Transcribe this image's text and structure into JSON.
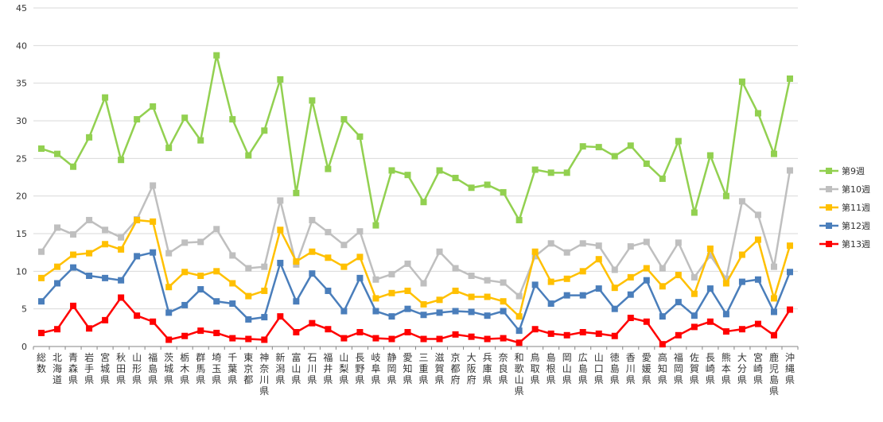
{
  "chart_data": {
    "type": "line",
    "title": "",
    "xlabel": "",
    "ylabel": "",
    "ylim": [
      0,
      45
    ],
    "yticks": [
      "0",
      "5",
      "10",
      "15",
      "20",
      "25",
      "30",
      "35",
      "40",
      "45"
    ],
    "grid": "horizontal",
    "legend_position": "right",
    "categories": [
      "総数",
      "北海道",
      "青森県",
      "岩手県",
      "宮城県",
      "秋田県",
      "山形県",
      "福島県",
      "茨城県",
      "栃木県",
      "群馬県",
      "埼玉県",
      "千葉県",
      "東京都",
      "神奈川県",
      "新潟県",
      "富山県",
      "石川県",
      "福井県",
      "山梨県",
      "長野県",
      "岐阜県",
      "静岡県",
      "愛知県",
      "三重県",
      "滋賀県",
      "京都府",
      "大阪府",
      "兵庫県",
      "奈良県",
      "和歌山県",
      "鳥取県",
      "島根県",
      "岡山県",
      "広島県",
      "山口県",
      "徳島県",
      "香川県",
      "愛媛県",
      "高知県",
      "福岡県",
      "佐賀県",
      "長崎県",
      "熊本県",
      "大分県",
      "宮崎県",
      "鹿児島県",
      "沖縄県"
    ],
    "series": [
      {
        "name": "第9週",
        "color": "#92d050",
        "values": [
          26.3,
          25.6,
          23.9,
          27.8,
          33.1,
          24.8,
          30.2,
          31.9,
          26.4,
          30.4,
          27.4,
          38.7,
          30.2,
          25.4,
          28.7,
          35.5,
          20.4,
          32.7,
          23.6,
          30.2,
          27.9,
          16.1,
          23.4,
          22.8,
          19.2,
          23.4,
          22.4,
          21.1,
          21.5,
          20.5,
          16.8,
          23.5,
          23.1,
          23.1,
          26.6,
          26.5,
          25.3,
          26.7,
          24.3,
          22.3,
          27.3,
          17.8,
          25.4,
          20.0,
          35.2,
          31.0,
          25.6,
          35.6
        ]
      },
      {
        "name": "第10週",
        "color": "#bfbfbf",
        "values": [
          12.6,
          15.8,
          14.9,
          16.8,
          15.5,
          14.5,
          16.9,
          21.4,
          12.4,
          13.8,
          13.9,
          15.6,
          12.1,
          10.4,
          10.6,
          19.4,
          10.9,
          16.8,
          15.2,
          13.5,
          15.3,
          8.9,
          9.6,
          11.0,
          8.4,
          12.6,
          10.4,
          9.4,
          8.8,
          8.5,
          6.7,
          12.0,
          13.7,
          12.5,
          13.7,
          13.4,
          10.2,
          13.3,
          13.9,
          10.4,
          13.8,
          9.2,
          12.1,
          9.0,
          19.3,
          17.5,
          10.6,
          23.4
        ]
      },
      {
        "name": "第11週",
        "color": "#ffc000",
        "values": [
          9.1,
          10.6,
          12.2,
          12.4,
          13.6,
          12.9,
          16.8,
          16.6,
          7.9,
          9.9,
          9.4,
          10.0,
          8.4,
          6.7,
          7.4,
          15.5,
          11.3,
          12.6,
          11.8,
          10.6,
          11.9,
          6.4,
          7.1,
          7.4,
          5.6,
          6.2,
          7.4,
          6.6,
          6.6,
          6.0,
          4.0,
          12.6,
          8.6,
          9.0,
          10.0,
          11.6,
          7.8,
          9.2,
          10.4,
          8.0,
          9.5,
          7.0,
          13.0,
          8.4,
          12.2,
          14.2,
          6.4,
          13.4
        ]
      },
      {
        "name": "第12週",
        "color": "#4a7ebb",
        "values": [
          6.0,
          8.4,
          10.5,
          9.4,
          9.1,
          8.8,
          12.0,
          12.5,
          4.5,
          5.5,
          7.6,
          6.0,
          5.7,
          3.6,
          3.9,
          11.1,
          6.0,
          9.7,
          7.4,
          4.7,
          9.1,
          4.7,
          4.0,
          5.0,
          4.2,
          4.5,
          4.7,
          4.6,
          4.1,
          4.7,
          2.1,
          8.2,
          5.7,
          6.8,
          6.8,
          7.7,
          5.0,
          6.9,
          8.8,
          4.0,
          5.9,
          4.1,
          7.7,
          4.3,
          8.6,
          8.9,
          4.6,
          9.9
        ]
      },
      {
        "name": "第13週",
        "color": "#ff0000",
        "values": [
          1.8,
          2.3,
          5.4,
          2.4,
          3.5,
          6.5,
          4.1,
          3.3,
          0.9,
          1.4,
          2.1,
          1.8,
          1.1,
          1.0,
          0.9,
          4.0,
          1.9,
          3.1,
          2.3,
          1.1,
          1.9,
          1.1,
          1.0,
          1.9,
          1.0,
          1.0,
          1.6,
          1.3,
          1.0,
          1.1,
          0.5,
          2.3,
          1.7,
          1.5,
          1.9,
          1.7,
          1.4,
          3.8,
          3.3,
          0.3,
          1.5,
          2.6,
          3.3,
          2.0,
          2.3,
          3.0,
          1.5,
          4.9
        ]
      }
    ]
  }
}
